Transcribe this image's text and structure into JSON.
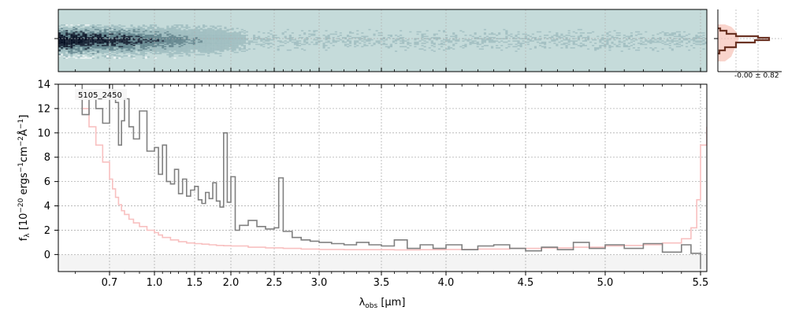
{
  "chart_data": [
    {
      "panel": "2d-spectrum",
      "type": "heatmap",
      "description_visible": "2D spectrum strip image",
      "colors": {
        "background": "#c5dbda",
        "ink_dark": "#000a1e",
        "ink_mid": "#4a6f7a"
      }
    },
    {
      "panel": "profile",
      "type": "line",
      "annotation": "-0.00 ± 0.82",
      "colors": {
        "profile": "#6b3324",
        "fill": "#f6c2b6"
      }
    },
    {
      "panel": "1d-spectrum",
      "type": "line",
      "label": "5105_2450",
      "xlabel_main": "λ",
      "xlabel_sub": "obs",
      "xlabel_unit": " [μm]",
      "ylabel_main": "f",
      "ylabel_sub": "λ",
      "ylabel_unit_a": " [10",
      "ylabel_exp_a": "−20",
      "ylabel_unit_b": " ergs",
      "ylabel_exp_b": "−1",
      "ylabel_unit_c": "cm",
      "ylabel_exp_c": "−2",
      "ylabel_unit_d": "Å",
      "ylabel_exp_d": "−1",
      "ylabel_unit_e": "]",
      "xlim": [
        0.55,
        5.52
      ],
      "ylim": [
        -1.4,
        14
      ],
      "grid": true,
      "x_ticks": [
        "0.7",
        "1.0",
        "1.5",
        "2.0",
        "2.5",
        "3.0",
        "3.5",
        "4.0",
        "4.5",
        "5.0",
        "5.5"
      ],
      "y_ticks": [
        "0",
        "2",
        "4",
        "6",
        "8",
        "10",
        "12",
        "14"
      ],
      "colors": {
        "flux": "#808080",
        "error": "#f8c0c0",
        "grid": "#b0b0b0"
      },
      "series": [
        {
          "role": "flux",
          "x": [
            0.6,
            0.62,
            0.64,
            0.66,
            0.68,
            0.7,
            0.72,
            0.74,
            0.76,
            0.78,
            0.8,
            0.83,
            0.86,
            0.9,
            0.95,
            1.0,
            1.05,
            1.1,
            1.15,
            1.2,
            1.25,
            1.3,
            1.35,
            1.4,
            1.45,
            1.5,
            1.55,
            1.6,
            1.65,
            1.7,
            1.75,
            1.8,
            1.85,
            1.9,
            1.95,
            2.0,
            2.05,
            2.1,
            2.2,
            2.3,
            2.4,
            2.5,
            2.55,
            2.6,
            2.7,
            2.8,
            2.9,
            3.0,
            3.1,
            3.2,
            3.3,
            3.4,
            3.5,
            3.6,
            3.7,
            3.8,
            3.9,
            4.0,
            4.1,
            4.2,
            4.3,
            4.4,
            4.5,
            4.6,
            4.7,
            4.8,
            4.9,
            5.0,
            5.1,
            5.2,
            5.3,
            5.4,
            5.45,
            5.5
          ],
          "y": [
            14.0,
            11.5,
            13.2,
            12.0,
            10.8,
            14.0,
            13.5,
            12.5,
            9.0,
            11.0,
            12.8,
            10.5,
            9.5,
            11.8,
            8.5,
            8.8,
            6.6,
            9.0,
            6.0,
            5.8,
            7.0,
            5.0,
            6.2,
            4.8,
            5.3,
            5.6,
            4.5,
            4.2,
            5.1,
            4.6,
            5.9,
            4.4,
            3.9,
            10.0,
            4.3,
            6.4,
            2.0,
            2.4,
            2.8,
            2.3,
            2.1,
            2.2,
            6.3,
            1.9,
            1.4,
            1.2,
            1.1,
            1.0,
            0.9,
            0.8,
            1.0,
            0.8,
            0.7,
            1.2,
            0.5,
            0.8,
            0.5,
            0.8,
            0.4,
            0.7,
            0.8,
            0.5,
            0.3,
            0.6,
            0.4,
            1.0,
            0.5,
            0.8,
            0.5,
            0.9,
            0.2,
            0.8,
            0.1,
            -1.2
          ]
        },
        {
          "role": "error",
          "x": [
            0.6,
            0.62,
            0.64,
            0.66,
            0.68,
            0.7,
            0.72,
            0.74,
            0.76,
            0.78,
            0.8,
            0.83,
            0.86,
            0.9,
            0.95,
            1.0,
            1.05,
            1.1,
            1.2,
            1.3,
            1.4,
            1.5,
            1.6,
            1.7,
            1.8,
            1.9,
            2.0,
            2.2,
            2.4,
            2.6,
            2.8,
            3.0,
            3.2,
            3.4,
            3.6,
            3.8,
            4.0,
            4.2,
            4.4,
            4.6,
            4.8,
            5.0,
            5.1,
            5.2,
            5.3,
            5.4,
            5.45,
            5.48,
            5.5,
            5.52
          ],
          "y": [
            13.0,
            12.0,
            10.5,
            9.0,
            7.6,
            6.2,
            5.4,
            4.7,
            4.1,
            3.6,
            3.3,
            2.9,
            2.6,
            2.3,
            2.0,
            1.8,
            1.6,
            1.4,
            1.2,
            1.05,
            0.95,
            0.9,
            0.85,
            0.8,
            0.75,
            0.72,
            0.7,
            0.6,
            0.55,
            0.5,
            0.45,
            0.42,
            0.4,
            0.4,
            0.38,
            0.4,
            0.42,
            0.45,
            0.5,
            0.55,
            0.6,
            0.7,
            0.75,
            0.8,
            0.95,
            1.3,
            2.2,
            4.5,
            9.0,
            10.5
          ]
        }
      ]
    }
  ]
}
